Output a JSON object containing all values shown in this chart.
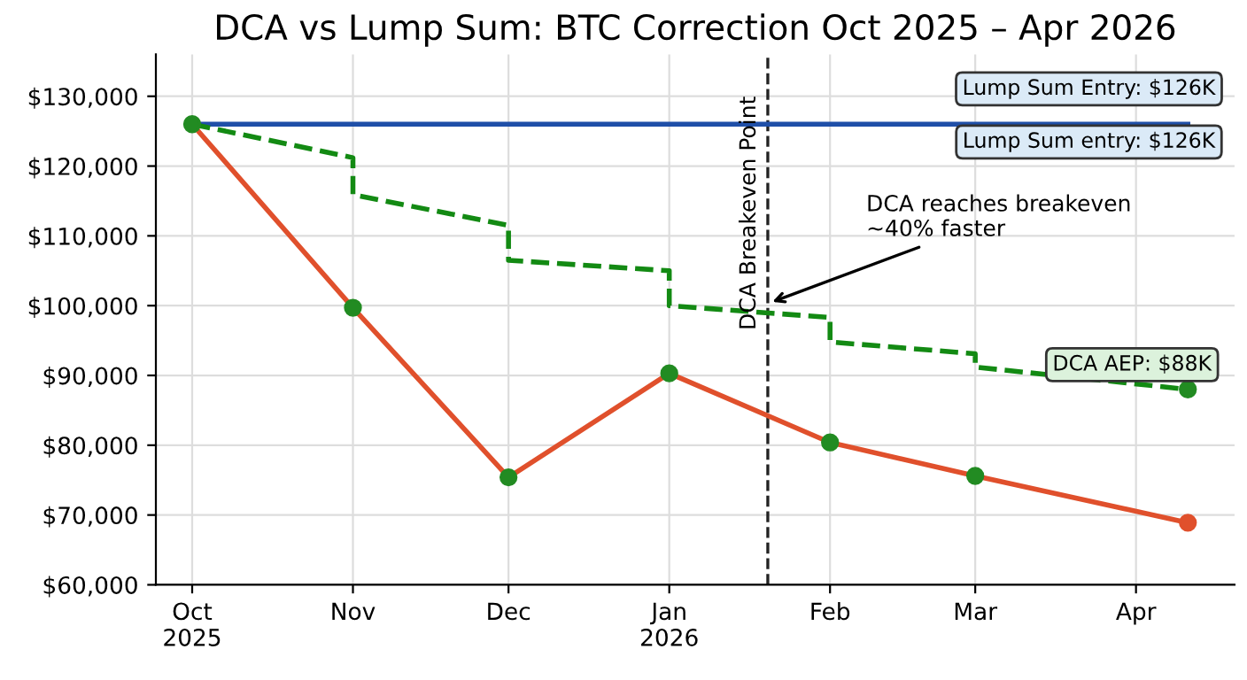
{
  "chart_data": {
    "type": "line",
    "title": "DCA vs Lump Sum: BTC Correction Oct 2025 – Apr 2026",
    "xlim": [
      "2025-09-24",
      "2026-04-20"
    ],
    "xticks": [
      {
        "value": "2025-10-01",
        "label": "Oct\n2025"
      },
      {
        "value": "2025-11-01",
        "label": "Nov"
      },
      {
        "value": "2025-12-01",
        "label": "Dec"
      },
      {
        "value": "2026-01-01",
        "label": "Jan\n2026"
      },
      {
        "value": "2026-02-01",
        "label": "Feb"
      },
      {
        "value": "2026-03-01",
        "label": "Mar"
      },
      {
        "value": "2026-04-01",
        "label": "Apr"
      }
    ],
    "ylim": [
      60000,
      136000
    ],
    "yticks": [
      {
        "value": 60000,
        "label": "$60,000"
      },
      {
        "value": 70000,
        "label": "$70,000"
      },
      {
        "value": 80000,
        "label": "$80,000"
      },
      {
        "value": 90000,
        "label": "$90,000"
      },
      {
        "value": 100000,
        "label": "$100,000"
      },
      {
        "value": 110000,
        "label": "$110,000"
      },
      {
        "value": 120000,
        "label": "$120,000"
      },
      {
        "value": 130000,
        "label": "$130,000"
      }
    ],
    "grid": true,
    "series": [
      {
        "color": "#1f4fa8",
        "line_style": "solid",
        "marker": "none",
        "x": [
          "2025-10-01",
          "2026-04-11"
        ],
        "values": [
          126000,
          126000
        ]
      },
      {
        "color": "#138a13",
        "line_style": "dashed",
        "marker": "none",
        "x": [
          "2025-10-01",
          "2025-11-01",
          "2025-11-01",
          "2025-12-01",
          "2025-12-01",
          "2026-01-01",
          "2026-01-01",
          "2026-02-01",
          "2026-02-01",
          "2026-03-01",
          "2026-03-01",
          "2026-04-11"
        ],
        "values": [
          126000,
          121200,
          115900,
          111500,
          106500,
          105000,
          100000,
          98300,
          94800,
          93100,
          91200,
          88000
        ]
      },
      {
        "color": "#e0502c",
        "line_style": "solid",
        "marker": "circle",
        "colors": [
          "#228b22",
          "#228b22",
          "#228b22",
          "#228b22",
          "#228b22",
          "#228b22",
          "#e0502c"
        ],
        "x": [
          "2025-10-01",
          "2025-11-01",
          "2025-12-01",
          "2026-01-01",
          "2026-02-01",
          "2026-03-01",
          "2026-04-11"
        ],
        "values": [
          126000,
          99700,
          75400,
          90300,
          80400,
          75600,
          68900
        ]
      },
      {
        "type": "scatter",
        "color": "#228b22",
        "marker": "circle",
        "x": [
          "2026-04-11"
        ],
        "values": [
          88000
        ]
      }
    ],
    "ref_lines": [
      {
        "axis": "x",
        "value": "2026-01-20",
        "label": "DCA Breakeven Point",
        "color": "#222222",
        "line_style": "dashed"
      }
    ],
    "annotations": [
      "Lump Sum Entry: $126K",
      "Lump Sum entry: $126K",
      "DCA AEP: $88K",
      {
        "text": "DCA reaches breakeven\n~40% faster",
        "x": "2026-01-20",
        "y": 100300
      }
    ]
  }
}
